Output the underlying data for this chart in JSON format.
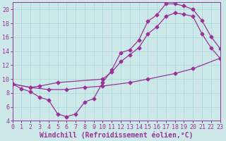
{
  "bg_color": "#cce8e8",
  "line_color": "#993399",
  "xlim": [
    0,
    23
  ],
  "ylim": [
    4,
    21
  ],
  "yticks": [
    4,
    6,
    8,
    10,
    12,
    14,
    16,
    18,
    20
  ],
  "xticks": [
    0,
    1,
    2,
    3,
    4,
    5,
    6,
    7,
    8,
    9,
    10,
    11,
    12,
    13,
    14,
    15,
    16,
    17,
    18,
    19,
    20,
    21,
    22,
    23
  ],
  "line1_x": [
    0,
    1,
    2,
    3,
    4,
    5,
    6,
    7,
    8,
    9,
    10,
    11,
    12,
    13,
    14,
    15,
    16,
    17,
    18,
    19,
    20,
    21,
    22,
    23
  ],
  "line1_y": [
    9.3,
    8.6,
    8.2,
    7.4,
    7.0,
    5.0,
    4.6,
    5.0,
    6.7,
    7.2,
    9.5,
    11.3,
    13.8,
    14.2,
    15.6,
    18.3,
    19.2,
    20.8,
    20.8,
    20.5,
    20.0,
    18.4,
    16.1,
    14.4
  ],
  "line2_x": [
    0,
    2,
    3,
    5,
    10,
    11,
    12,
    13,
    14,
    15,
    16,
    17,
    18,
    19,
    20,
    21,
    22,
    23
  ],
  "line2_y": [
    9.3,
    8.8,
    9.0,
    9.5,
    10.0,
    11.0,
    12.5,
    13.5,
    14.5,
    16.5,
    17.5,
    19.0,
    19.5,
    19.3,
    19.0,
    16.5,
    14.5,
    13.0
  ],
  "line3_x": [
    0,
    2,
    4,
    6,
    8,
    10,
    13,
    15,
    18,
    20,
    23
  ],
  "line3_y": [
    9.3,
    8.8,
    8.5,
    8.5,
    8.8,
    9.0,
    9.5,
    10.0,
    10.8,
    11.5,
    13.0
  ],
  "xlabel": "Windchill (Refroidissement éolien,°C)",
  "marker": "D",
  "markersize": 2.5,
  "linewidth": 0.9,
  "xlabel_fontsize": 7,
  "tick_fontsize": 6,
  "grid_color": "#a8d8d8",
  "grid_lw": 0.5
}
